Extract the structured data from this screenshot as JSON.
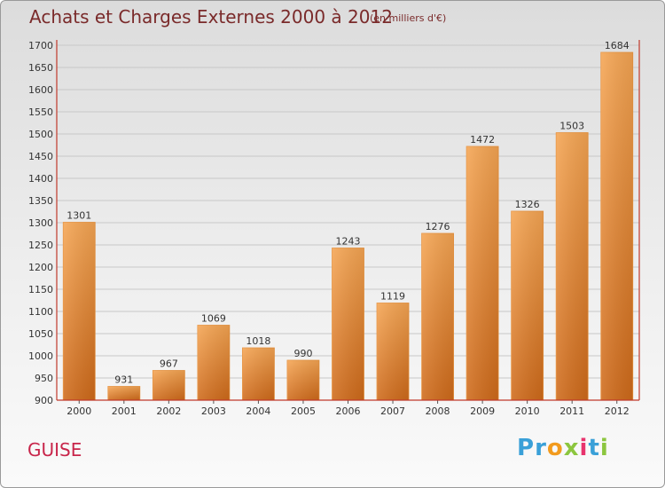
{
  "title": "Achats et Charges Externes 2000 à 2012",
  "subtitle": "(en milliers d'€)",
  "town": "GUISE",
  "logo": {
    "letters": [
      "P",
      "r",
      "o",
      "x",
      "i",
      "t",
      "i"
    ],
    "colors": [
      "#3aa0d8",
      "#3aa0d8",
      "#f29b1e",
      "#8cc63f",
      "#e8336d",
      "#3aa0d8",
      "#8cc63f"
    ]
  },
  "colors": {
    "bar_light": "#f5a553",
    "bar_dark": "#cf6a1a",
    "title": "#7a2a2a",
    "axis": "#c0392b",
    "town": "#c8254a"
  },
  "chart_data": {
    "type": "bar",
    "categories": [
      "2000",
      "2001",
      "2002",
      "2003",
      "2004",
      "2005",
      "2006",
      "2007",
      "2008",
      "2009",
      "2010",
      "2011",
      "2012"
    ],
    "values": [
      1301,
      931,
      967,
      1069,
      1018,
      990,
      1243,
      1119,
      1276,
      1472,
      1326,
      1503,
      1684
    ],
    "ylim": [
      900,
      1700
    ],
    "yticks": [
      900,
      950,
      1000,
      1050,
      1100,
      1150,
      1200,
      1250,
      1300,
      1350,
      1400,
      1450,
      1500,
      1550,
      1600,
      1650,
      1700
    ],
    "grid": true,
    "xlabel": "",
    "ylabel": ""
  }
}
